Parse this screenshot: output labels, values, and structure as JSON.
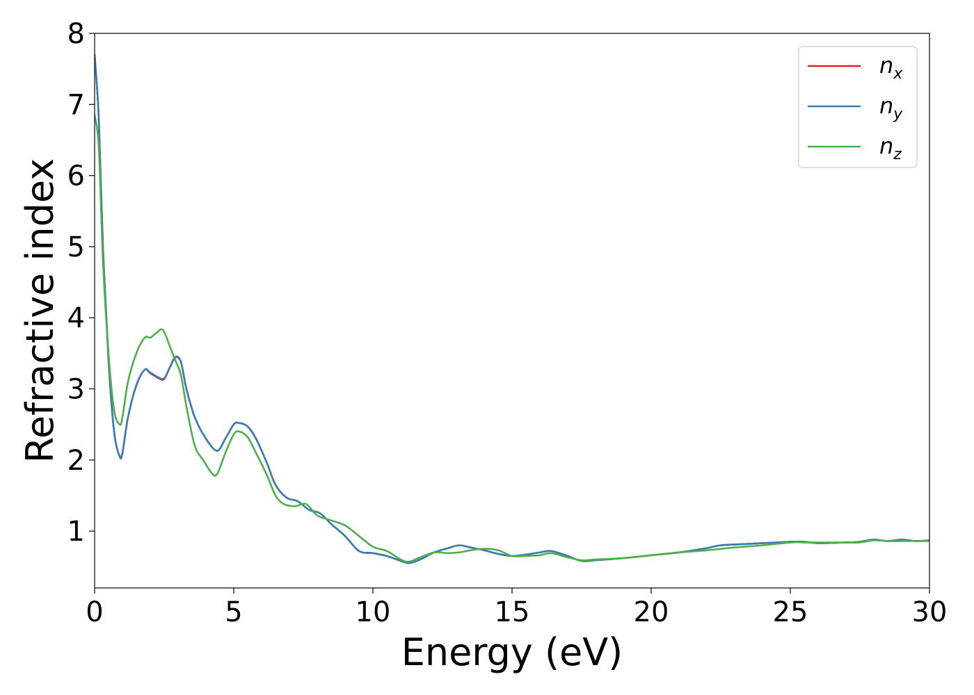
{
  "chart_data": {
    "type": "line",
    "xlabel": "Energy (eV)",
    "ylabel": "Refractive index",
    "xlim": [
      0,
      30
    ],
    "ylim": [
      0.2,
      8.0
    ],
    "xticks": [
      0,
      5,
      10,
      15,
      20,
      25,
      30
    ],
    "xtick_labels": [
      "0",
      "5",
      "10",
      "15",
      "20",
      "25",
      "30"
    ],
    "yticks": [
      1,
      2,
      3,
      4,
      5,
      6,
      7,
      8
    ],
    "ytick_labels": [
      "1",
      "2",
      "3",
      "4",
      "5",
      "6",
      "7",
      "8"
    ],
    "grid": false,
    "legend_position": "top-right",
    "series": [
      {
        "name": "n_x",
        "label_main": "n",
        "label_sub": "x",
        "color": "#d62728",
        "x": [
          0,
          0.15,
          0.3,
          0.5,
          0.7,
          0.9,
          1.0,
          1.2,
          1.5,
          1.8,
          2.0,
          2.3,
          2.5,
          2.7,
          2.9,
          3.1,
          3.3,
          3.6,
          4.0,
          4.4,
          4.7,
          5.0,
          5.2,
          5.5,
          5.8,
          6.2,
          6.5,
          6.9,
          7.3,
          7.7,
          8.1,
          8.5,
          9.0,
          9.5,
          10.0,
          10.5,
          11.0,
          11.3,
          11.7,
          12.2,
          12.7,
          13.1,
          13.5,
          14.0,
          14.5,
          15.0,
          15.5,
          16.0,
          16.4,
          17.0,
          17.5,
          18.0,
          19.0,
          20.0,
          21.0,
          22.0,
          22.5,
          23.5,
          24.5,
          25.0,
          25.5,
          26.0,
          27.0,
          27.5,
          28.0,
          28.5,
          29.0,
          29.5,
          30.0
        ],
        "y": [
          7.7,
          6.8,
          5.0,
          3.4,
          2.4,
          2.05,
          2.1,
          2.6,
          3.05,
          3.27,
          3.22,
          3.15,
          3.14,
          3.3,
          3.44,
          3.38,
          3.0,
          2.6,
          2.3,
          2.13,
          2.3,
          2.5,
          2.52,
          2.47,
          2.3,
          1.95,
          1.65,
          1.47,
          1.42,
          1.3,
          1.25,
          1.1,
          0.93,
          0.72,
          0.69,
          0.65,
          0.58,
          0.55,
          0.6,
          0.7,
          0.76,
          0.8,
          0.77,
          0.73,
          0.68,
          0.65,
          0.67,
          0.7,
          0.72,
          0.65,
          0.58,
          0.59,
          0.62,
          0.66,
          0.7,
          0.76,
          0.8,
          0.82,
          0.84,
          0.85,
          0.85,
          0.83,
          0.84,
          0.85,
          0.88,
          0.86,
          0.88,
          0.86,
          0.87
        ]
      },
      {
        "name": "n_y",
        "label_main": "n",
        "label_sub": "y",
        "color": "#377eb8",
        "x": [
          0,
          0.15,
          0.3,
          0.5,
          0.7,
          0.9,
          1.0,
          1.2,
          1.5,
          1.8,
          2.0,
          2.3,
          2.5,
          2.7,
          2.9,
          3.1,
          3.3,
          3.6,
          4.0,
          4.4,
          4.7,
          5.0,
          5.2,
          5.5,
          5.8,
          6.2,
          6.5,
          6.9,
          7.3,
          7.7,
          8.1,
          8.5,
          9.0,
          9.5,
          10.0,
          10.5,
          11.0,
          11.3,
          11.7,
          12.2,
          12.7,
          13.1,
          13.5,
          14.0,
          14.5,
          15.0,
          15.5,
          16.0,
          16.4,
          17.0,
          17.5,
          18.0,
          19.0,
          20.0,
          21.0,
          22.0,
          22.5,
          23.5,
          24.5,
          25.0,
          25.5,
          26.0,
          27.0,
          27.5,
          28.0,
          28.5,
          29.0,
          29.5,
          30.0
        ],
        "y": [
          7.7,
          6.8,
          5.0,
          3.4,
          2.4,
          2.05,
          2.1,
          2.6,
          3.05,
          3.27,
          3.23,
          3.16,
          3.15,
          3.3,
          3.45,
          3.38,
          3.0,
          2.6,
          2.3,
          2.13,
          2.3,
          2.5,
          2.52,
          2.47,
          2.3,
          1.95,
          1.65,
          1.47,
          1.42,
          1.3,
          1.25,
          1.1,
          0.93,
          0.72,
          0.69,
          0.65,
          0.58,
          0.55,
          0.6,
          0.7,
          0.76,
          0.8,
          0.77,
          0.73,
          0.68,
          0.65,
          0.67,
          0.7,
          0.72,
          0.65,
          0.58,
          0.59,
          0.62,
          0.66,
          0.7,
          0.76,
          0.8,
          0.82,
          0.84,
          0.85,
          0.85,
          0.83,
          0.84,
          0.85,
          0.88,
          0.86,
          0.88,
          0.86,
          0.87
        ]
      },
      {
        "name": "n_z",
        "label_main": "n",
        "label_sub": "z",
        "color": "#4daf4a",
        "x": [
          0,
          0.15,
          0.3,
          0.5,
          0.7,
          0.9,
          1.0,
          1.2,
          1.5,
          1.8,
          2.0,
          2.2,
          2.45,
          2.7,
          2.9,
          3.1,
          3.3,
          3.6,
          3.9,
          4.2,
          4.4,
          4.7,
          5.0,
          5.2,
          5.5,
          5.8,
          6.2,
          6.5,
          6.8,
          7.2,
          7.6,
          8.0,
          8.5,
          9.0,
          9.5,
          10.0,
          10.5,
          11.0,
          11.3,
          11.7,
          12.2,
          12.7,
          13.1,
          13.5,
          14.0,
          14.5,
          15.0,
          15.5,
          16.0,
          16.4,
          17.0,
          17.5,
          18.0,
          19.0,
          20.0,
          21.0,
          22.0,
          23.0,
          24.0,
          25.0,
          25.5,
          26.0,
          27.0,
          27.5,
          28.0,
          28.5,
          29.0,
          29.5,
          30.0
        ],
        "y": [
          6.85,
          6.4,
          4.8,
          3.5,
          2.7,
          2.5,
          2.6,
          3.1,
          3.5,
          3.72,
          3.72,
          3.78,
          3.83,
          3.6,
          3.4,
          3.2,
          2.75,
          2.2,
          2.0,
          1.82,
          1.8,
          2.1,
          2.36,
          2.4,
          2.32,
          2.1,
          1.78,
          1.5,
          1.38,
          1.35,
          1.38,
          1.22,
          1.15,
          1.08,
          0.93,
          0.78,
          0.72,
          0.6,
          0.57,
          0.63,
          0.7,
          0.69,
          0.7,
          0.73,
          0.75,
          0.73,
          0.65,
          0.65,
          0.66,
          0.69,
          0.63,
          0.59,
          0.6,
          0.62,
          0.66,
          0.7,
          0.73,
          0.77,
          0.8,
          0.84,
          0.84,
          0.84,
          0.84,
          0.84,
          0.87,
          0.86,
          0.86,
          0.86,
          0.86
        ]
      }
    ]
  }
}
